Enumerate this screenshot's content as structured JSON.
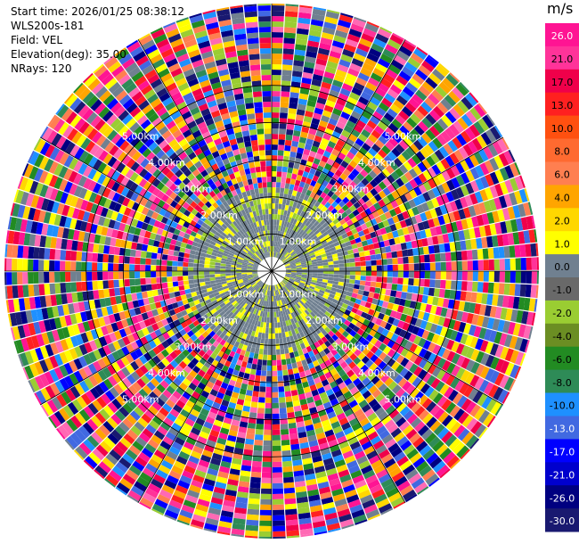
{
  "header": {
    "start_time": "Start time: 2026/01/25 08:38:12",
    "instrument": "WLS200s-181",
    "field": "Field: VEL",
    "elevation": "Elevation(deg): 35.00",
    "nrays": "NRays: 120"
  },
  "colorbar": {
    "unit": "m/s",
    "ticks": [
      "26.0",
      "21.0",
      "17.0",
      "13.0",
      "10.0",
      "8.0",
      "6.0",
      "4.0",
      "2.0",
      "1.0",
      "0.0",
      "-1.0",
      "-2.0",
      "-4.0",
      "-6.0",
      "-8.0",
      "-10.0",
      "-13.0",
      "-17.0",
      "-21.0",
      "-26.0",
      "-30.0"
    ],
    "colors": [
      "#ff1493",
      "#ff3399",
      "#f0004a",
      "#ff2020",
      "#ff5010",
      "#ff6a30",
      "#ff7f50",
      "#ffa500",
      "#ffd700",
      "#ffff00",
      "#708090",
      "#696969",
      "#9acd32",
      "#6b8e23",
      "#228b22",
      "#2e8b57",
      "#1e90ff",
      "#4169e1",
      "#0000ff",
      "#0000cd",
      "#000080",
      "#191970"
    ]
  },
  "chart_data": {
    "type": "ppi-polar",
    "field": "VEL",
    "nrays": 120,
    "range_rings_km": [
      "1.00km",
      "2.00km",
      "3.00km",
      "4.00km",
      "5.00km"
    ],
    "ring_labels": {
      "r1": "1.00km",
      "r2": "2.00km",
      "r3": "3.00km",
      "r4": "4.00km",
      "r5": "5.00km"
    },
    "max_range_km": 7.2,
    "valid_range_km": 2.4,
    "valid_pattern": {
      "west_east_split": true,
      "colors": {
        "north": "#708090",
        "northeast": "#9acd32",
        "west": "#ffff00",
        "southeast": "#9acd32",
        "center": "#708090"
      }
    }
  }
}
